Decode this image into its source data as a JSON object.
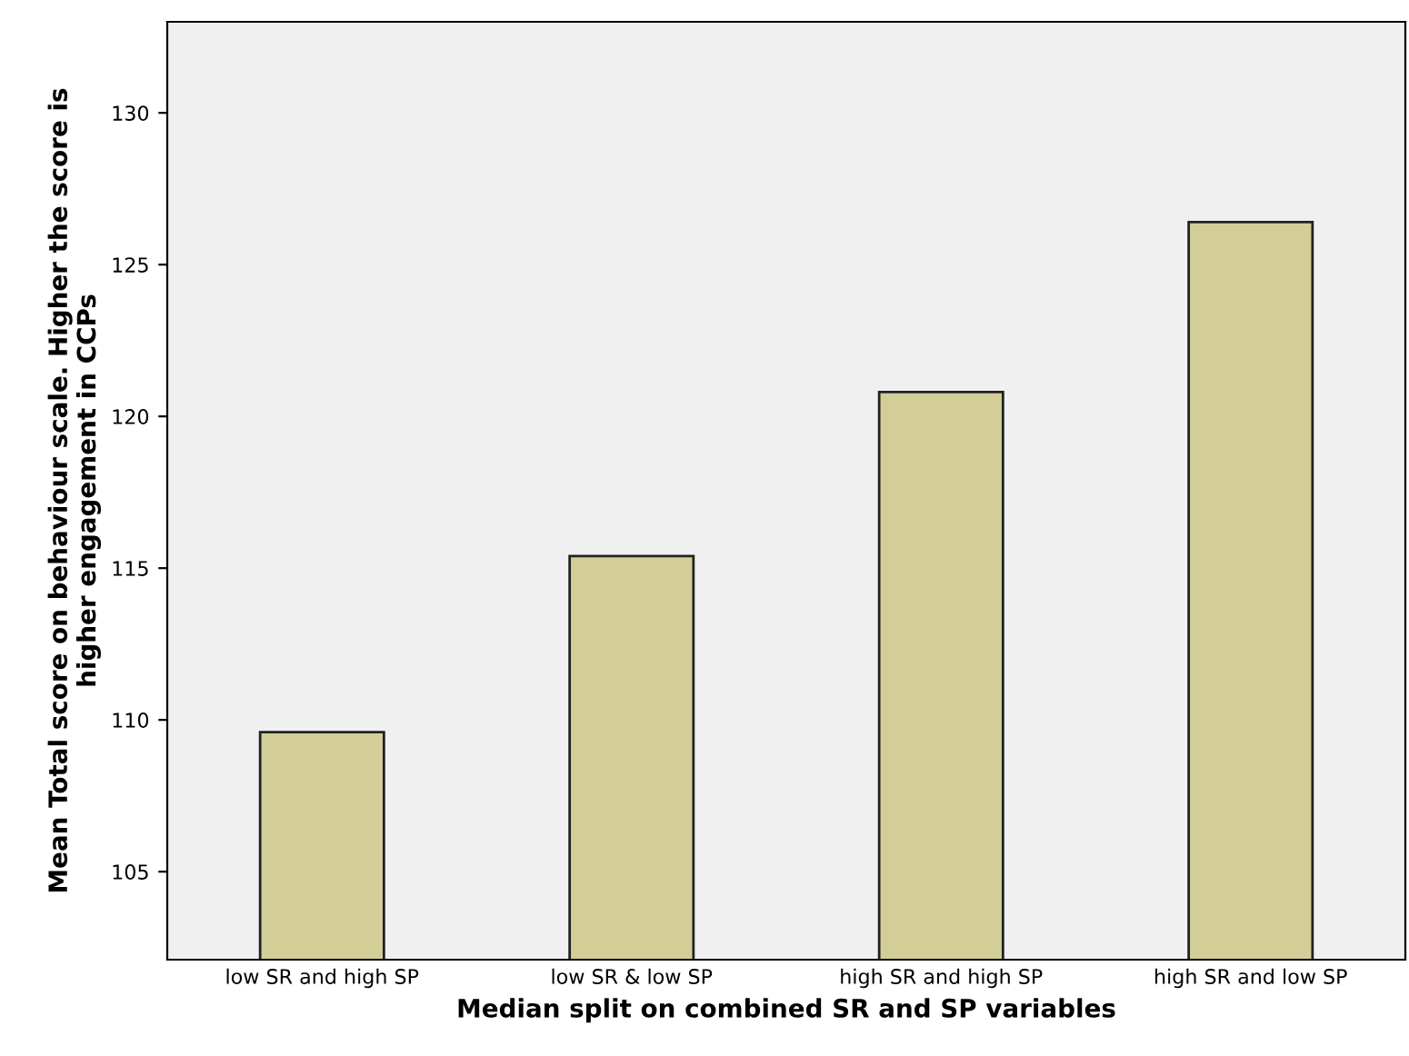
{
  "chart_data": {
    "type": "bar",
    "xlabel": "Median split on combined SR and SP variables",
    "ylabel": "Mean Total score on behaviour scale. Higher the score is\nhigher engagement in CCPs",
    "categories": [
      "low SR and high SP",
      "low SR & low SP",
      "high SR and high SP",
      "high SR and low SP"
    ],
    "values": [
      109.6,
      115.4,
      120.8,
      126.4
    ],
    "color": "#d3ce98",
    "ylim": [
      102.1,
      133.0
    ],
    "yticks": [
      105,
      110,
      115,
      120,
      125,
      130
    ],
    "grid": false
  }
}
